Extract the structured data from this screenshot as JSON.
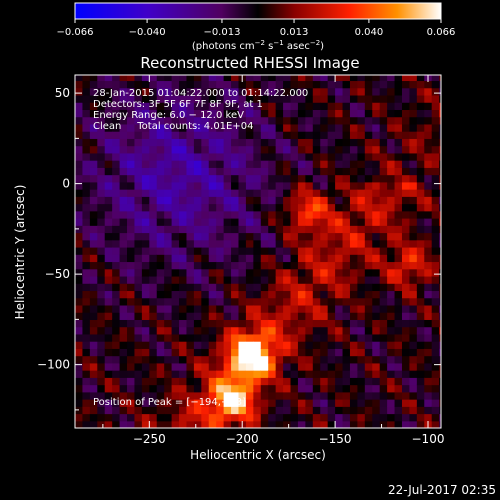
{
  "chart_data": {
    "type": "heatmap",
    "title": "Reconstructed RHESSI Image",
    "xlabel": "Heliocentric X (arcsec)",
    "ylabel": "Heliocentric Y (arcsec)",
    "xlim": [
      -290,
      -93
    ],
    "ylim": [
      -135,
      60
    ],
    "x_ticks": [
      -250,
      -200,
      -150,
      -100
    ],
    "x_tick_labels": [
      "−250",
      "−200",
      "−150",
      "−100"
    ],
    "y_ticks": [
      50,
      0,
      -50,
      -100
    ],
    "y_tick_labels": [
      "50",
      "0",
      "−50",
      "−100"
    ],
    "colorbar": {
      "ticks": [
        -0.066,
        -0.04,
        -0.013,
        0.013,
        0.04,
        0.066
      ],
      "tick_labels": [
        "−0.066",
        "−0.040",
        "−0.013",
        "0.013",
        "0.040",
        "0.066"
      ],
      "unit_pre": "(photons cm",
      "unit_exp1": "−2",
      "unit_mid1": " s",
      "unit_exp2": "−1",
      "unit_mid2": " asec",
      "unit_exp3": "−2",
      "unit_post": ")"
    },
    "annotations": [
      "28-Jan-2015 01:04:22.000 to 01:14:22.000",
      "Detectors: 3F 5F 6F 7F 8F 9F, at 1",
      "Energy Range: 6.0 − 12.0 keV",
      "Clean     Total counts: 4.01E+04"
    ],
    "peak_label": "Position of Peak = [−194,−93]",
    "peak": [
      -194,
      -93
    ],
    "peak_value": 0.066,
    "bright_features": [
      {
        "x": -195,
        "y": -95,
        "value": 0.066
      },
      {
        "x": -205,
        "y": -120,
        "value": 0.05
      },
      {
        "x": -165,
        "y": -15,
        "value": 0.035
      },
      {
        "x": -110,
        "y": -45,
        "value": 0.03
      }
    ],
    "grid": false,
    "timestamp": "22-Jul-2017 02:35"
  }
}
